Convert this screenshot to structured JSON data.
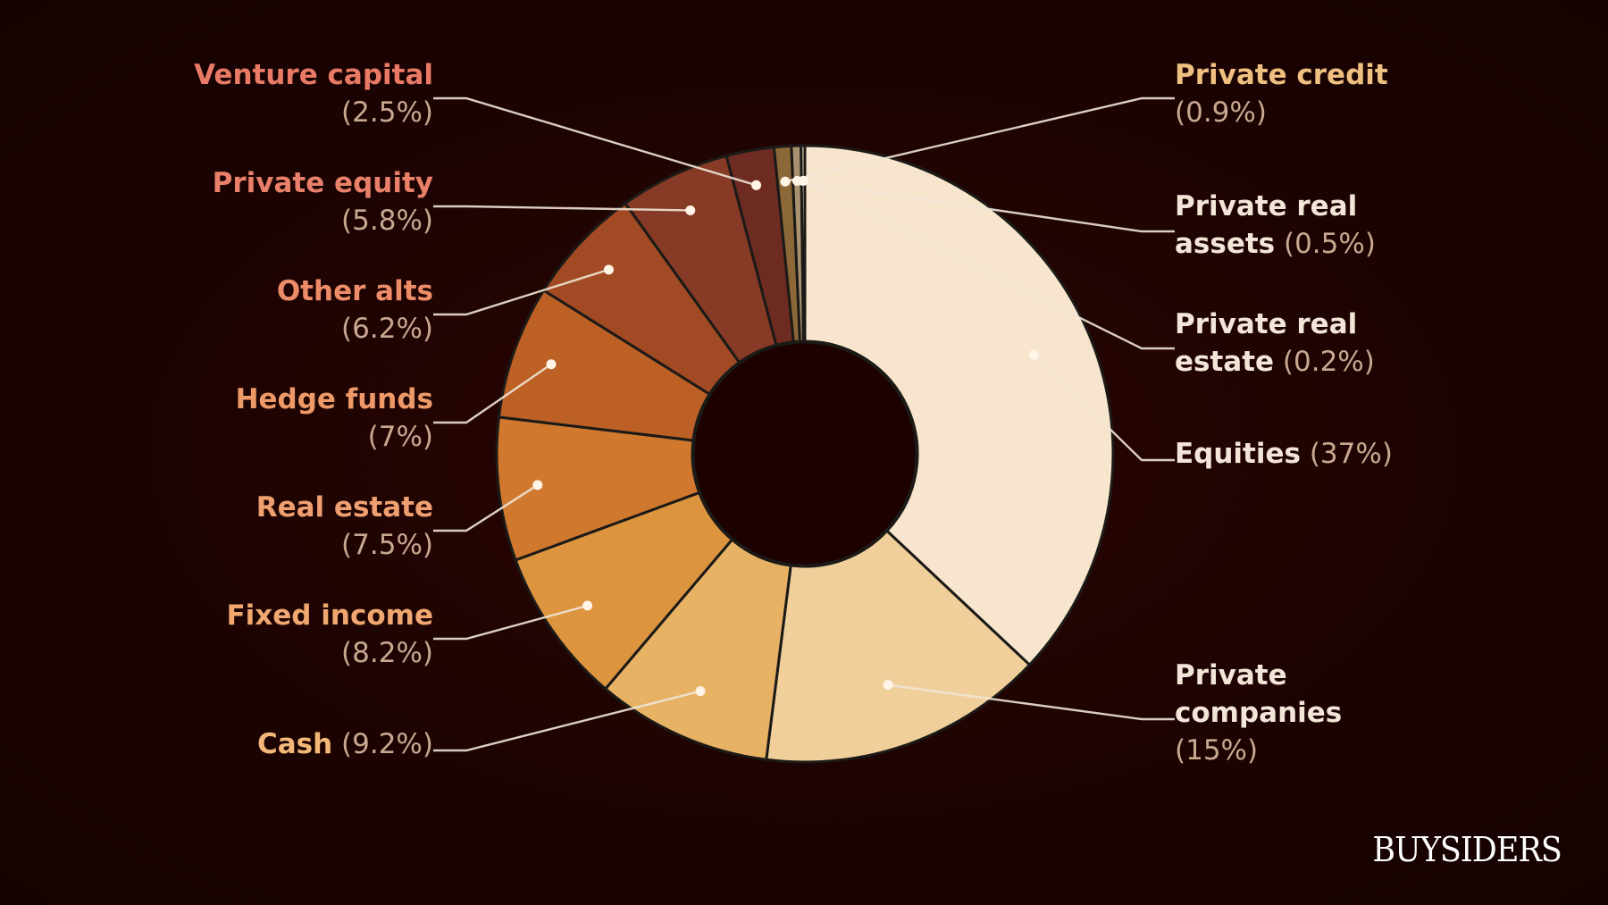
{
  "brand": "BUYSIDERS",
  "chart_data": {
    "type": "pie",
    "variant": "donut",
    "slices": [
      {
        "label": "Equities",
        "value": 37,
        "display": "(37%)",
        "color": "#f7e6cd",
        "label_color": "#f3e6d8"
      },
      {
        "label": "Private companies",
        "value": 15,
        "display": "(15%)",
        "color": "#f0cf9b",
        "label_color": "#f3e6d8"
      },
      {
        "label": "Cash",
        "value": 9.2,
        "display": "(9.2%)",
        "color": "#e8b265",
        "label_color": "#f3b878"
      },
      {
        "label": "Fixed income",
        "value": 8.2,
        "display": "(8.2%)",
        "color": "#dc943f",
        "label_color": "#f0a870"
      },
      {
        "label": "Real estate",
        "value": 7.5,
        "display": "(7.5%)",
        "color": "#d0792e",
        "label_color": "#f0a070"
      },
      {
        "label": "Hedge funds",
        "value": 7,
        "display": "(7%)",
        "color": "#bd6026",
        "label_color": "#ee9a68"
      },
      {
        "label": "Other alts",
        "value": 6.2,
        "display": "(6.2%)",
        "color": "#a14a23",
        "label_color": "#ec8c68"
      },
      {
        "label": "Private equity",
        "value": 5.8,
        "display": "(5.8%)",
        "color": "#873a25",
        "label_color": "#e8806a"
      },
      {
        "label": "Venture capital",
        "value": 2.5,
        "display": "(2.5%)",
        "color": "#6e2b22",
        "label_color": "#e87a66"
      },
      {
        "label": "Private credit",
        "value": 0.9,
        "display": "(0.9%)",
        "color": "#8c6838",
        "label_color": "#f0c080"
      },
      {
        "label": "Private real assets",
        "value": 0.5,
        "display": "(0.5%)",
        "color": "#a89270",
        "label_color": "#f3e6d8"
      },
      {
        "label": "Private real estate",
        "value": 0.2,
        "display": "(0.2%)",
        "color": "#d8c8a8",
        "label_color": "#f3e6d8"
      }
    ]
  }
}
